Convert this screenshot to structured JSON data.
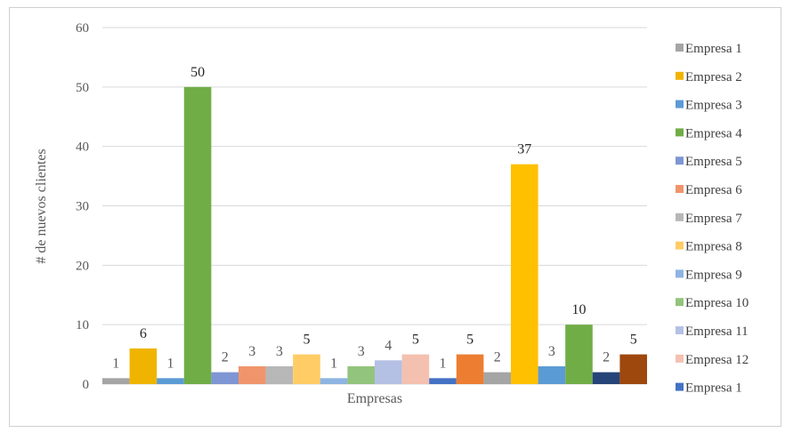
{
  "chart_data": {
    "type": "bar",
    "title": "",
    "xlabel": "Empresas",
    "ylabel": "# de nuevos clientes",
    "ylim": [
      0,
      60
    ],
    "yticks": [
      "0",
      "10",
      "20",
      "30",
      "40",
      "50",
      "60"
    ],
    "grid": true,
    "legend_position": "right",
    "series": [
      {
        "name": "Empresa 1",
        "value": 1,
        "label": "1",
        "color": "#a5a5a5"
      },
      {
        "name": "Empresa 2",
        "value": 6,
        "label": "6",
        "color": "#f0b400"
      },
      {
        "name": "Empresa 3",
        "value": 1,
        "label": "1",
        "color": "#5b9bd5"
      },
      {
        "name": "Empresa 4",
        "value": 50,
        "label": "50",
        "color": "#70ad47"
      },
      {
        "name": "Empresa 5",
        "value": 2,
        "label": "2",
        "color": "#7f96d4"
      },
      {
        "name": "Empresa 6",
        "value": 3,
        "label": "3",
        "color": "#f0956b"
      },
      {
        "name": "Empresa 7",
        "value": 3,
        "label": "3",
        "color": "#b7b7b7"
      },
      {
        "name": "Empresa 8",
        "value": 5,
        "label": "5",
        "color": "#ffcc66"
      },
      {
        "name": "Empresa 9",
        "value": 1,
        "label": "1",
        "color": "#8db4e2"
      },
      {
        "name": "Empresa 10",
        "value": 3,
        "label": "3",
        "color": "#93c47d"
      },
      {
        "name": "Empresa 11",
        "value": 4,
        "label": "4",
        "color": "#b4c0e4"
      },
      {
        "name": "Empresa 12",
        "value": 5,
        "label": "5",
        "color": "#f4c0b0"
      },
      {
        "name": "Empresa 1",
        "value": 1,
        "label": "1",
        "color": "#4472c4"
      },
      {
        "name": "",
        "value": 5,
        "label": "5",
        "color": "#ed7d31"
      },
      {
        "name": "",
        "value": 2,
        "label": "2",
        "color": "#a5a5a5"
      },
      {
        "name": "",
        "value": 37,
        "label": "37",
        "color": "#ffc000"
      },
      {
        "name": "",
        "value": 3,
        "label": "3",
        "color": "#5b9bd5"
      },
      {
        "name": "",
        "value": 10,
        "label": "10",
        "color": "#70ad47"
      },
      {
        "name": "",
        "value": 2,
        "label": "2",
        "color": "#264478"
      },
      {
        "name": "",
        "value": 5,
        "label": "5",
        "color": "#9e480e"
      }
    ]
  }
}
